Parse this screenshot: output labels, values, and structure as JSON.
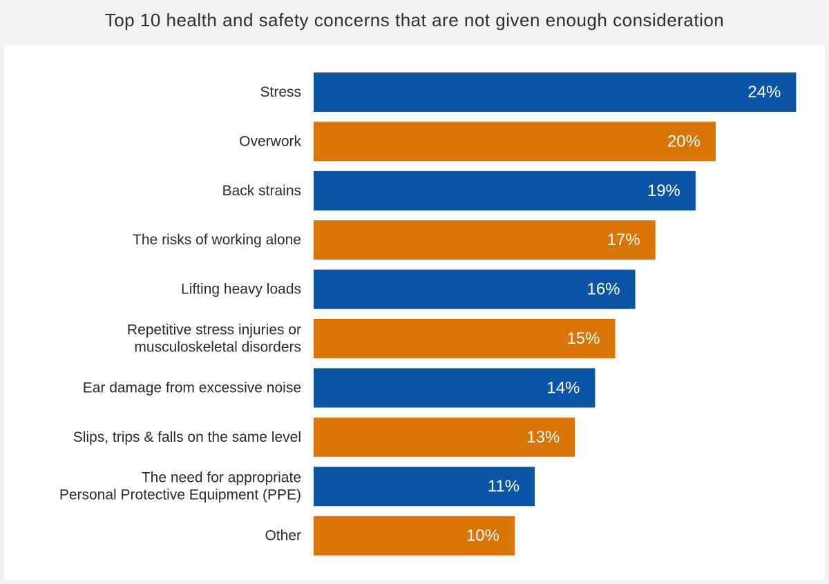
{
  "title": "Top 10 health and safety concerns that are not given enough consideration",
  "colors": {
    "blue": "#0c55a6",
    "orange": "#d97406"
  },
  "chart_data": {
    "type": "bar",
    "orientation": "horizontal",
    "categories": [
      [
        "Stress"
      ],
      [
        "Overwork"
      ],
      [
        "Back strains"
      ],
      [
        "The risks of working alone"
      ],
      [
        "Lifting heavy loads"
      ],
      [
        "Repetitive stress injuries or",
        "musculoskeletal disorders"
      ],
      [
        "Ear damage from excessive noise"
      ],
      [
        "Slips, trips & falls on the same level"
      ],
      [
        "The need for appropriate",
        "Personal Protective Equipment (PPE)"
      ],
      [
        "Other"
      ]
    ],
    "values": [
      24,
      20,
      19,
      17,
      16,
      15,
      14,
      13,
      11,
      10
    ],
    "value_labels": [
      "24%",
      "20%",
      "19%",
      "17%",
      "16%",
      "15%",
      "14%",
      "13%",
      "11%",
      "10%"
    ],
    "bar_colors": [
      "blue",
      "orange",
      "blue",
      "orange",
      "blue",
      "orange",
      "blue",
      "orange",
      "blue",
      "orange"
    ],
    "unit": "%",
    "grid": false,
    "legend": "none"
  }
}
